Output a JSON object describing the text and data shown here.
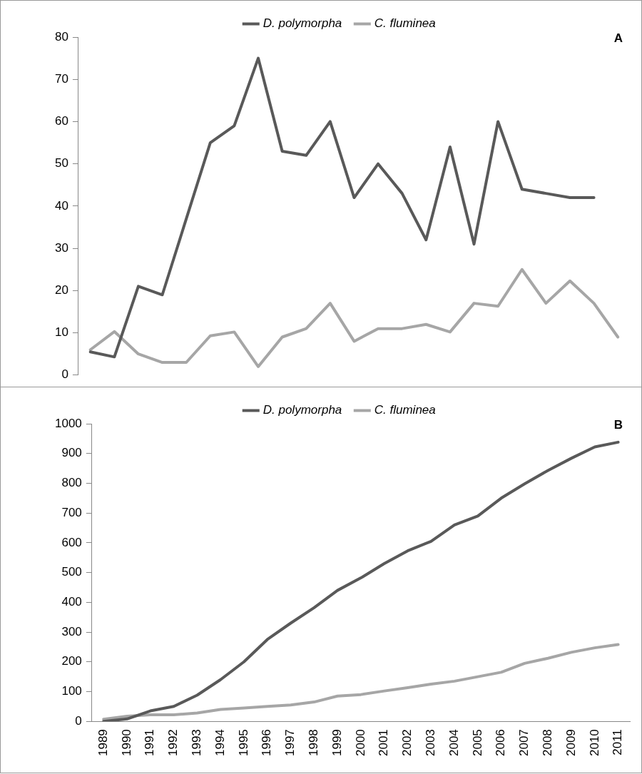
{
  "chart_data": [
    {
      "type": "line",
      "categories": [
        null,
        null,
        null,
        null,
        null,
        null,
        null,
        null,
        null,
        null,
        null,
        null,
        null,
        null,
        null,
        null,
        null,
        null,
        null,
        null,
        null,
        null,
        null
      ],
      "series": [
        {
          "name": "D. polymorpha",
          "color": "#595959",
          "values": [
            5.5,
            4.3,
            21,
            19,
            37,
            55,
            59,
            75,
            53,
            52,
            60,
            42,
            50,
            43,
            32,
            54,
            31,
            60,
            44,
            43,
            42,
            42,
            null
          ]
        },
        {
          "name": "C. fluminea",
          "color": "#a6a6a6",
          "values": [
            6,
            10.3,
            5,
            3,
            3,
            9.3,
            10.2,
            2,
            9,
            11,
            17,
            8,
            11,
            11,
            12,
            10.2,
            17,
            16.3,
            25,
            17,
            22.3,
            17,
            9
          ]
        }
      ],
      "ylim": [
        0,
        80
      ],
      "yticks": [
        0,
        10,
        20,
        30,
        40,
        50,
        60,
        70,
        80
      ],
      "grid": false,
      "legend": "top",
      "tick_labels": "y",
      "marker": "none",
      "line_style": "solid",
      "annotations": [
        "A"
      ]
    },
    {
      "type": "line",
      "categories": [
        "1989",
        "1990",
        "1991",
        "1992",
        "1993",
        "1994",
        "1995",
        "1996",
        "1997",
        "1998",
        "1999",
        "2000",
        "2001",
        "2002",
        "2003",
        "2004",
        "2005",
        "2006",
        "2007",
        "2008",
        "2009",
        "2010",
        "2011"
      ],
      "series": [
        {
          "name": "D. polymorpha",
          "color": "#595959",
          "values": [
            0,
            8,
            35,
            50,
            88,
            140,
            200,
            275,
            330,
            382,
            440,
            482,
            530,
            573,
            605,
            660,
            690,
            750,
            798,
            843,
            884,
            922,
            938
          ]
        },
        {
          "name": "C. fluminea",
          "color": "#a6a6a6",
          "values": [
            7,
            17,
            22,
            22,
            28,
            40,
            45,
            50,
            55,
            65,
            85,
            90,
            102,
            113,
            125,
            135,
            150,
            165,
            195,
            212,
            232,
            247,
            258
          ]
        }
      ],
      "ylim": [
        0,
        1000
      ],
      "yticks": [
        0,
        100,
        200,
        300,
        400,
        500,
        600,
        700,
        800,
        900,
        1000
      ],
      "grid": false,
      "legend": "top",
      "marker": "none",
      "line_style": "solid",
      "annotations": [
        "B"
      ]
    }
  ]
}
